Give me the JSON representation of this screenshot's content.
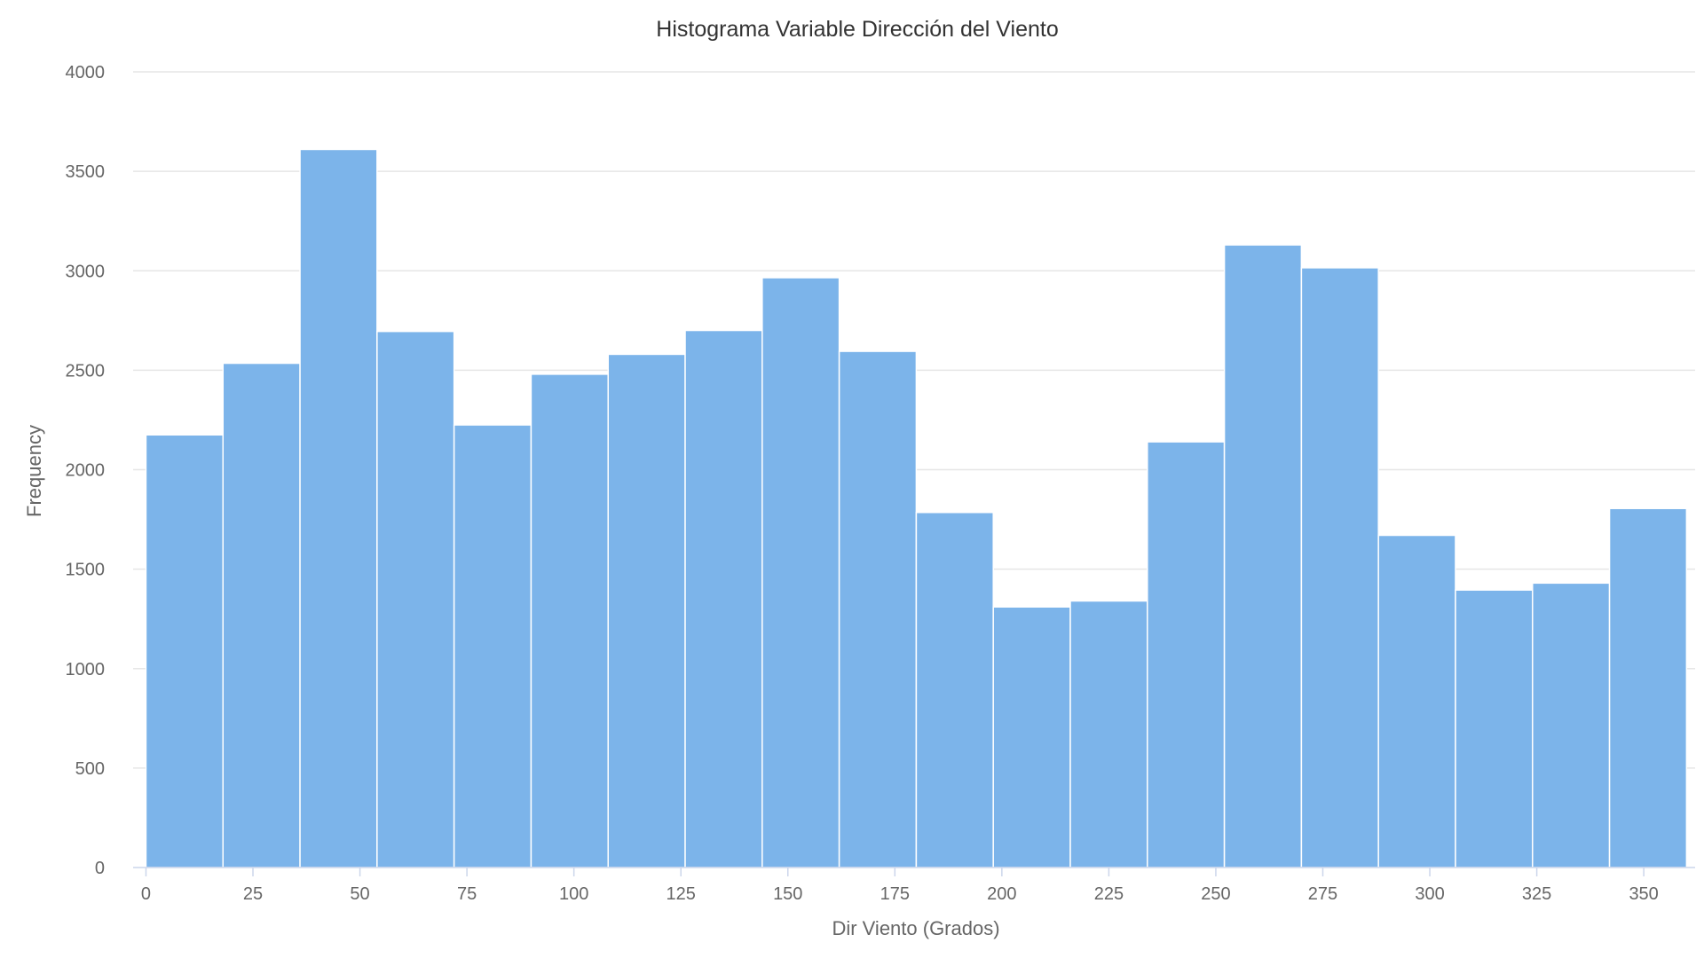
{
  "chart_data": {
    "type": "bar",
    "title": "Histograma Variable Dirección del Viento",
    "xlabel": "Dir Viento (Grados)",
    "ylabel": "Frequency",
    "xlim": [
      -3,
      362
    ],
    "ylim": [
      0,
      4000
    ],
    "grid": true,
    "legend": "none",
    "bar_color": "#7cb4ea",
    "x_ticks": [
      0,
      25,
      50,
      75,
      100,
      125,
      150,
      175,
      200,
      225,
      250,
      275,
      300,
      325,
      350
    ],
    "y_ticks": [
      0,
      500,
      1000,
      1500,
      2000,
      2500,
      3000,
      3500,
      4000
    ],
    "bin_edges": [
      0,
      18,
      36,
      54,
      72,
      90,
      108,
      126,
      144,
      162,
      180,
      198,
      216,
      234,
      252,
      270,
      288,
      306,
      324,
      342,
      360
    ],
    "values": [
      2175,
      2535,
      3610,
      2695,
      2225,
      2480,
      2580,
      2700,
      2965,
      2595,
      1785,
      1310,
      1340,
      2140,
      3130,
      3015,
      1670,
      1395,
      1430,
      1805
    ]
  }
}
